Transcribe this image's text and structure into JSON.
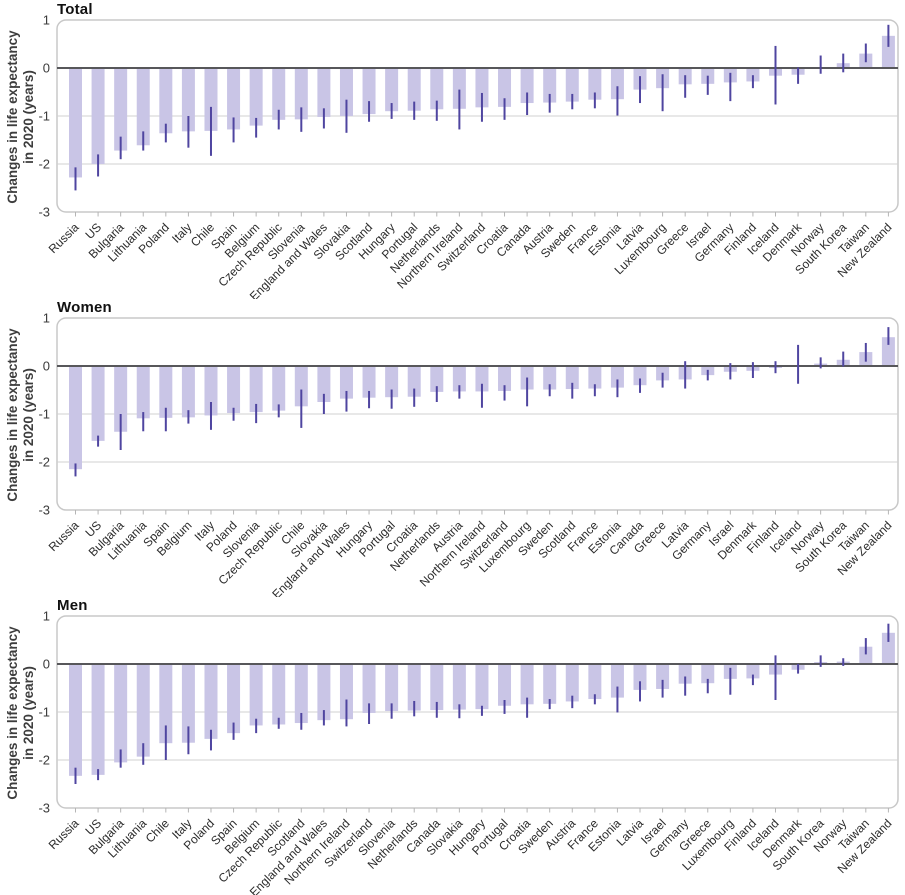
{
  "figure": {
    "y_axis_label": {
      "line1": "Changes in life expectancy",
      "line2": "in 2020 (years)"
    },
    "colors": {
      "bar_fill": "#c9c5e6",
      "error_bar": "#4f45a0",
      "gridline": "#d0d0d0",
      "zero_line": "#57575a",
      "panel_border": "#c8c8c8",
      "tick_text": "#3b3b3b",
      "category_text": "#2b2b2b",
      "x_tick_mark": "#b5b5b5"
    }
  },
  "chart_data": {
    "type": "bar",
    "subtype": "bar-with-error-bars",
    "ylabel": "Changes in life expectancy in 2020 (years)",
    "ylim": [
      -3,
      1
    ],
    "y_ticks": [
      1,
      0,
      -1,
      -2,
      -3
    ],
    "grid": "horizontal",
    "legend": "none",
    "charts": [
      {
        "title": "Total",
        "categories": [
          "Russia",
          "US",
          "Bulgaria",
          "Lithuania",
          "Poland",
          "Italy",
          "Chile",
          "Spain",
          "Belgium",
          "Czech Republic",
          "Slovenia",
          "England and Wales",
          "Slovakia",
          "Scotland",
          "Hungary",
          "Portugal",
          "Netherlands",
          "Northern Ireland",
          "Switzerland",
          "Croatia",
          "Canada",
          "Austria",
          "Sweden",
          "France",
          "Estonia",
          "Latvia",
          "Luxembourg",
          "Greece",
          "Israel",
          "Germany",
          "Finland",
          "Iceland",
          "Denmark",
          "Norway",
          "South Korea",
          "Taiwan",
          "New Zealand"
        ],
        "values": [
          -2.28,
          -2.0,
          -1.72,
          -1.61,
          -1.36,
          -1.32,
          -1.31,
          -1.28,
          -1.2,
          -1.08,
          -1.07,
          -1.02,
          -1.0,
          -0.96,
          -0.9,
          -0.89,
          -0.86,
          -0.85,
          -0.82,
          -0.81,
          -0.73,
          -0.72,
          -0.7,
          -0.66,
          -0.65,
          -0.45,
          -0.42,
          -0.34,
          -0.33,
          -0.3,
          -0.28,
          -0.16,
          -0.14,
          0.02,
          0.1,
          0.3,
          0.67
        ],
        "ci_low": [
          -2.55,
          -2.26,
          -1.9,
          -1.72,
          -1.55,
          -1.66,
          -1.83,
          -1.55,
          -1.45,
          -1.28,
          -1.33,
          -1.26,
          -1.35,
          -1.12,
          -1.06,
          -1.08,
          -1.1,
          -1.28,
          -1.12,
          -1.08,
          -0.98,
          -0.93,
          -0.86,
          -0.84,
          -0.99,
          -0.73,
          -0.9,
          -0.62,
          -0.56,
          -0.69,
          -0.42,
          -0.76,
          -0.33,
          -0.12,
          -0.09,
          0.12,
          0.44
        ],
        "ci_high": [
          -2.07,
          -1.8,
          -1.43,
          -1.32,
          -1.16,
          -1.0,
          -0.81,
          -1.03,
          -1.04,
          -0.87,
          -0.82,
          -0.84,
          -0.66,
          -0.69,
          -0.73,
          -0.7,
          -0.68,
          -0.45,
          -0.52,
          -0.63,
          -0.51,
          -0.54,
          -0.54,
          -0.51,
          -0.38,
          -0.17,
          -0.13,
          -0.15,
          -0.16,
          -0.1,
          -0.15,
          0.46,
          0.01,
          0.26,
          0.3,
          0.51,
          0.9
        ]
      },
      {
        "title": "Women",
        "categories": [
          "Russia",
          "US",
          "Bulgaria",
          "Lithuania",
          "Spain",
          "Belgium",
          "Italy",
          "Poland",
          "Slovenia",
          "Czech Republic",
          "Chile",
          "Slovakia",
          "England and Wales",
          "Hungary",
          "Portugal",
          "Croatia",
          "Netherlands",
          "Austria",
          "Northern Ireland",
          "Switzerland",
          "Luxembourg",
          "Sweden",
          "Scotland",
          "France",
          "Estonia",
          "Canada",
          "Greece",
          "Latvia",
          "Germany",
          "Israel",
          "Denmark",
          "Finland",
          "Iceland",
          "Norway",
          "South Korea",
          "Taiwan",
          "New Zealand"
        ],
        "values": [
          -2.15,
          -1.56,
          -1.37,
          -1.09,
          -1.08,
          -1.07,
          -1.03,
          -0.98,
          -0.96,
          -0.93,
          -0.84,
          -0.75,
          -0.68,
          -0.66,
          -0.65,
          -0.64,
          -0.54,
          -0.53,
          -0.53,
          -0.52,
          -0.49,
          -0.49,
          -0.48,
          -0.47,
          -0.45,
          -0.4,
          -0.3,
          -0.28,
          -0.19,
          -0.12,
          -0.1,
          -0.03,
          0.02,
          0.05,
          0.13,
          0.29,
          0.6
        ],
        "ci_low": [
          -2.3,
          -1.68,
          -1.75,
          -1.36,
          -1.36,
          -1.2,
          -1.33,
          -1.14,
          -1.19,
          -1.07,
          -1.29,
          -1.0,
          -0.95,
          -0.88,
          -0.89,
          -0.85,
          -0.75,
          -0.68,
          -0.87,
          -0.72,
          -0.84,
          -0.63,
          -0.68,
          -0.63,
          -0.65,
          -0.56,
          -0.45,
          -0.47,
          -0.3,
          -0.28,
          -0.25,
          -0.15,
          -0.37,
          -0.05,
          -0.01,
          0.09,
          0.44
        ],
        "ci_high": [
          -2.03,
          -1.45,
          -1.0,
          -0.96,
          -0.87,
          -0.92,
          -0.75,
          -0.87,
          -0.79,
          -0.8,
          -0.49,
          -0.58,
          -0.52,
          -0.52,
          -0.49,
          -0.47,
          -0.42,
          -0.4,
          -0.37,
          -0.4,
          -0.24,
          -0.38,
          -0.35,
          -0.38,
          -0.28,
          -0.26,
          -0.14,
          0.1,
          -0.08,
          0.06,
          0.08,
          0.1,
          0.44,
          0.18,
          0.3,
          0.48,
          0.81
        ]
      },
      {
        "title": "Men",
        "categories": [
          "Russia",
          "US",
          "Bulgaria",
          "Lithuania",
          "Chile",
          "Italy",
          "Poland",
          "Spain",
          "Belgium",
          "Czech Republic",
          "Scotland",
          "England and Wales",
          "Northern Ireland",
          "Switzerland",
          "Slovenia",
          "Netherlands",
          "Canada",
          "Slovakia",
          "Hungary",
          "Portugal",
          "Croatia",
          "Sweden",
          "Austria",
          "France",
          "Estonia",
          "Latvia",
          "Israel",
          "Germany",
          "Greece",
          "Luxembourg",
          "Finland",
          "Iceland",
          "Denmark",
          "South Korea",
          "Norway",
          "Taiwan",
          "New Zealand"
        ],
        "values": [
          -2.33,
          -2.31,
          -2.05,
          -1.93,
          -1.65,
          -1.64,
          -1.56,
          -1.44,
          -1.28,
          -1.26,
          -1.23,
          -1.17,
          -1.15,
          -1.02,
          -0.98,
          -0.97,
          -0.96,
          -0.95,
          -0.94,
          -0.87,
          -0.84,
          -0.83,
          -0.78,
          -0.73,
          -0.7,
          -0.54,
          -0.52,
          -0.41,
          -0.4,
          -0.31,
          -0.3,
          -0.22,
          -0.12,
          0.04,
          0.05,
          0.36,
          0.65
        ],
        "ci_low": [
          -2.5,
          -2.42,
          -2.16,
          -2.1,
          -2.0,
          -1.88,
          -1.8,
          -1.58,
          -1.44,
          -1.35,
          -1.37,
          -1.28,
          -1.3,
          -1.25,
          -1.14,
          -1.09,
          -1.12,
          -1.13,
          -1.08,
          -1.04,
          -1.12,
          -0.94,
          -0.92,
          -0.84,
          -1.01,
          -0.78,
          -0.7,
          -0.66,
          -0.61,
          -0.64,
          -0.44,
          -0.75,
          -0.2,
          -0.06,
          -0.04,
          0.2,
          0.46
        ],
        "ci_high": [
          -2.16,
          -2.19,
          -1.78,
          -1.65,
          -1.28,
          -1.3,
          -1.37,
          -1.22,
          -1.14,
          -1.12,
          -1.02,
          -0.96,
          -0.74,
          -0.82,
          -0.82,
          -0.77,
          -0.79,
          -0.84,
          -0.87,
          -0.75,
          -0.7,
          -0.73,
          -0.66,
          -0.63,
          -0.47,
          -0.36,
          -0.33,
          -0.26,
          -0.31,
          -0.08,
          -0.22,
          0.18,
          0.0,
          0.18,
          0.12,
          0.54,
          0.84
        ]
      }
    ]
  }
}
